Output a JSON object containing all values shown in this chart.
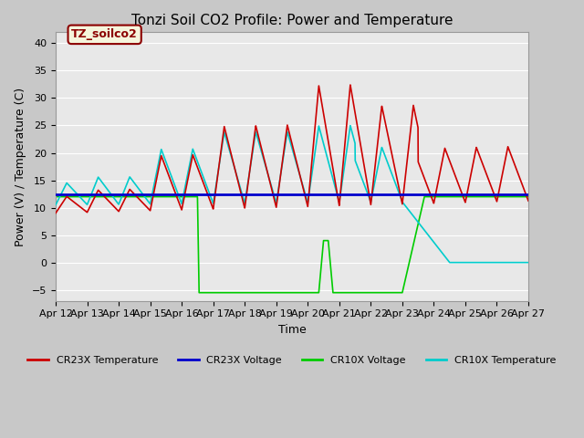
{
  "title": "Tonzi Soil CO2 Profile: Power and Temperature",
  "xlabel": "Time",
  "ylabel": "Power (V) / Temperature (C)",
  "ylim": [
    -7,
    42
  ],
  "yticks": [
    -5,
    0,
    5,
    10,
    15,
    20,
    25,
    30,
    35,
    40
  ],
  "xlim": [
    0,
    15
  ],
  "xtick_labels": [
    "Apr 12",
    "Apr 13",
    "Apr 14",
    "Apr 15",
    "Apr 16",
    "Apr 17",
    "Apr 18",
    "Apr 19",
    "Apr 20",
    "Apr 21",
    "Apr 22",
    "Apr 23",
    "Apr 24",
    "Apr 25",
    "Apr 26",
    "Apr 27"
  ],
  "fig_bg": "#c8c8c8",
  "plot_bg": "#e8e8e8",
  "annotation_text": "TZ_soilco2",
  "annotation_bg": "#f5f5dc",
  "annotation_fg": "#8b0000",
  "legend": [
    "CR23X Temperature",
    "CR23X Voltage",
    "CR10X Voltage",
    "CR10X Temperature"
  ],
  "colors": {
    "cr23x_temp": "#cc0000",
    "cr23x_volt": "#0000cc",
    "cr10x_volt": "#00cc00",
    "cr10x_temp": "#00cccc"
  },
  "cr23x_volt_value": 12.5,
  "cr10x_volt_value": 12.0,
  "grid_color": "#ffffff",
  "title_fontsize": 11,
  "axis_fontsize": 9,
  "tick_fontsize": 8
}
